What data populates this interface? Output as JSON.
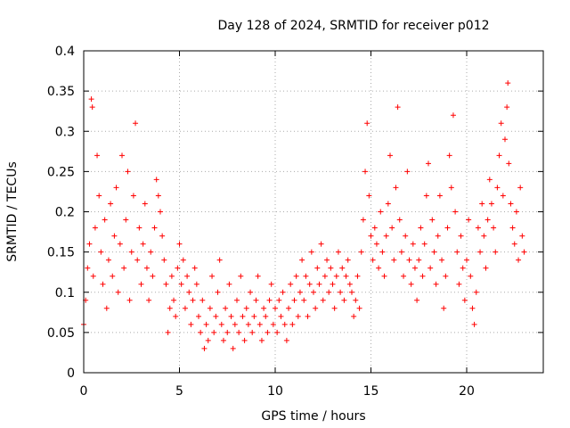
{
  "chart_data": {
    "type": "scatter",
    "title": "Day 128 of 2024, SRMTID for receiver p012",
    "xlabel": "GPS time / hours",
    "ylabel": "SRMTID / TECUs",
    "xlim": [
      0,
      24
    ],
    "ylim": [
      0,
      0.4
    ],
    "xticks": [
      0,
      5,
      10,
      15,
      20
    ],
    "xtick_labels": [
      "0",
      "5",
      "10",
      "15",
      "20"
    ],
    "yticks": [
      0,
      0.05,
      0.1,
      0.15,
      0.2,
      0.25,
      0.3,
      0.35,
      0.4
    ],
    "ytick_labels": [
      "0",
      "0.05",
      "0.1",
      "0.15",
      "0.2",
      "0.25",
      "0.3",
      "0.35",
      "0.4"
    ],
    "grid": true,
    "marker": "+",
    "color": "#ff0000",
    "series": [
      {
        "name": "SRMTID",
        "points": [
          [
            0.0,
            0.06
          ],
          [
            0.1,
            0.09
          ],
          [
            0.2,
            0.13
          ],
          [
            0.3,
            0.16
          ],
          [
            0.4,
            0.34
          ],
          [
            0.45,
            0.33
          ],
          [
            0.5,
            0.12
          ],
          [
            0.6,
            0.18
          ],
          [
            0.7,
            0.27
          ],
          [
            0.8,
            0.22
          ],
          [
            0.9,
            0.15
          ],
          [
            1.0,
            0.11
          ],
          [
            1.1,
            0.19
          ],
          [
            1.2,
            0.08
          ],
          [
            1.3,
            0.14
          ],
          [
            1.4,
            0.21
          ],
          [
            1.5,
            0.12
          ],
          [
            1.6,
            0.17
          ],
          [
            1.7,
            0.23
          ],
          [
            1.8,
            0.1
          ],
          [
            1.9,
            0.16
          ],
          [
            2.0,
            0.27
          ],
          [
            2.1,
            0.13
          ],
          [
            2.2,
            0.19
          ],
          [
            2.3,
            0.25
          ],
          [
            2.4,
            0.09
          ],
          [
            2.5,
            0.15
          ],
          [
            2.6,
            0.22
          ],
          [
            2.7,
            0.31
          ],
          [
            2.8,
            0.14
          ],
          [
            2.9,
            0.18
          ],
          [
            3.0,
            0.11
          ],
          [
            3.1,
            0.16
          ],
          [
            3.2,
            0.21
          ],
          [
            3.3,
            0.13
          ],
          [
            3.4,
            0.09
          ],
          [
            3.5,
            0.15
          ],
          [
            3.6,
            0.12
          ],
          [
            3.7,
            0.18
          ],
          [
            3.8,
            0.24
          ],
          [
            3.9,
            0.22
          ],
          [
            4.0,
            0.2
          ],
          [
            4.1,
            0.17
          ],
          [
            4.2,
            0.14
          ],
          [
            4.3,
            0.11
          ],
          [
            4.4,
            0.05
          ],
          [
            4.5,
            0.08
          ],
          [
            4.6,
            0.12
          ],
          [
            4.7,
            0.09
          ],
          [
            4.8,
            0.07
          ],
          [
            4.9,
            0.13
          ],
          [
            5.0,
            0.16
          ],
          [
            5.1,
            0.11
          ],
          [
            5.2,
            0.14
          ],
          [
            5.3,
            0.08
          ],
          [
            5.4,
            0.12
          ],
          [
            5.5,
            0.1
          ],
          [
            5.6,
            0.06
          ],
          [
            5.7,
            0.09
          ],
          [
            5.8,
            0.13
          ],
          [
            5.9,
            0.11
          ],
          [
            6.0,
            0.07
          ],
          [
            6.1,
            0.05
          ],
          [
            6.2,
            0.09
          ],
          [
            6.3,
            0.03
          ],
          [
            6.4,
            0.06
          ],
          [
            6.5,
            0.04
          ],
          [
            6.6,
            0.08
          ],
          [
            6.7,
            0.12
          ],
          [
            6.8,
            0.05
          ],
          [
            6.9,
            0.07
          ],
          [
            7.0,
            0.1
          ],
          [
            7.1,
            0.14
          ],
          [
            7.2,
            0.06
          ],
          [
            7.3,
            0.04
          ],
          [
            7.4,
            0.08
          ],
          [
            7.5,
            0.05
          ],
          [
            7.6,
            0.11
          ],
          [
            7.7,
            0.07
          ],
          [
            7.8,
            0.03
          ],
          [
            7.9,
            0.06
          ],
          [
            8.0,
            0.09
          ],
          [
            8.1,
            0.05
          ],
          [
            8.2,
            0.12
          ],
          [
            8.3,
            0.07
          ],
          [
            8.4,
            0.04
          ],
          [
            8.5,
            0.08
          ],
          [
            8.6,
            0.06
          ],
          [
            8.7,
            0.1
          ],
          [
            8.8,
            0.05
          ],
          [
            8.9,
            0.07
          ],
          [
            9.0,
            0.09
          ],
          [
            9.1,
            0.12
          ],
          [
            9.2,
            0.06
          ],
          [
            9.3,
            0.04
          ],
          [
            9.4,
            0.08
          ],
          [
            9.5,
            0.07
          ],
          [
            9.6,
            0.05
          ],
          [
            9.7,
            0.09
          ],
          [
            9.8,
            0.11
          ],
          [
            9.9,
            0.06
          ],
          [
            10.0,
            0.08
          ],
          [
            10.1,
            0.05
          ],
          [
            10.2,
            0.09
          ],
          [
            10.3,
            0.07
          ],
          [
            10.4,
            0.1
          ],
          [
            10.5,
            0.06
          ],
          [
            10.6,
            0.04
          ],
          [
            10.7,
            0.08
          ],
          [
            10.8,
            0.11
          ],
          [
            10.9,
            0.06
          ],
          [
            11.0,
            0.09
          ],
          [
            11.1,
            0.12
          ],
          [
            11.2,
            0.07
          ],
          [
            11.3,
            0.1
          ],
          [
            11.4,
            0.14
          ],
          [
            11.5,
            0.09
          ],
          [
            11.6,
            0.12
          ],
          [
            11.7,
            0.07
          ],
          [
            11.8,
            0.11
          ],
          [
            11.9,
            0.15
          ],
          [
            12.0,
            0.1
          ],
          [
            12.1,
            0.08
          ],
          [
            12.2,
            0.13
          ],
          [
            12.3,
            0.11
          ],
          [
            12.4,
            0.16
          ],
          [
            12.5,
            0.09
          ],
          [
            12.6,
            0.12
          ],
          [
            12.7,
            0.14
          ],
          [
            12.8,
            0.1
          ],
          [
            12.9,
            0.13
          ],
          [
            13.0,
            0.11
          ],
          [
            13.1,
            0.08
          ],
          [
            13.2,
            0.12
          ],
          [
            13.3,
            0.15
          ],
          [
            13.4,
            0.1
          ],
          [
            13.5,
            0.13
          ],
          [
            13.6,
            0.09
          ],
          [
            13.7,
            0.12
          ],
          [
            13.8,
            0.14
          ],
          [
            13.9,
            0.11
          ],
          [
            14.0,
            0.1
          ],
          [
            14.1,
            0.07
          ],
          [
            14.2,
            0.09
          ],
          [
            14.3,
            0.12
          ],
          [
            14.4,
            0.08
          ],
          [
            14.5,
            0.15
          ],
          [
            14.6,
            0.19
          ],
          [
            14.7,
            0.25
          ],
          [
            14.8,
            0.31
          ],
          [
            14.9,
            0.22
          ],
          [
            15.0,
            0.17
          ],
          [
            15.1,
            0.14
          ],
          [
            15.2,
            0.18
          ],
          [
            15.3,
            0.16
          ],
          [
            15.4,
            0.13
          ],
          [
            15.5,
            0.2
          ],
          [
            15.6,
            0.15
          ],
          [
            15.7,
            0.12
          ],
          [
            15.8,
            0.17
          ],
          [
            15.9,
            0.21
          ],
          [
            16.0,
            0.27
          ],
          [
            16.1,
            0.18
          ],
          [
            16.2,
            0.14
          ],
          [
            16.3,
            0.23
          ],
          [
            16.4,
            0.33
          ],
          [
            16.5,
            0.19
          ],
          [
            16.6,
            0.15
          ],
          [
            16.7,
            0.12
          ],
          [
            16.8,
            0.17
          ],
          [
            16.9,
            0.25
          ],
          [
            17.0,
            0.14
          ],
          [
            17.1,
            0.11
          ],
          [
            17.2,
            0.16
          ],
          [
            17.3,
            0.13
          ],
          [
            17.4,
            0.09
          ],
          [
            17.5,
            0.14
          ],
          [
            17.6,
            0.18
          ],
          [
            17.7,
            0.12
          ],
          [
            17.8,
            0.16
          ],
          [
            17.9,
            0.22
          ],
          [
            18.0,
            0.26
          ],
          [
            18.1,
            0.13
          ],
          [
            18.2,
            0.19
          ],
          [
            18.3,
            0.15
          ],
          [
            18.4,
            0.11
          ],
          [
            18.5,
            0.17
          ],
          [
            18.6,
            0.22
          ],
          [
            18.7,
            0.14
          ],
          [
            18.8,
            0.08
          ],
          [
            18.9,
            0.12
          ],
          [
            19.0,
            0.18
          ],
          [
            19.1,
            0.27
          ],
          [
            19.2,
            0.23
          ],
          [
            19.3,
            0.32
          ],
          [
            19.4,
            0.2
          ],
          [
            19.5,
            0.15
          ],
          [
            19.6,
            0.11
          ],
          [
            19.7,
            0.17
          ],
          [
            19.8,
            0.13
          ],
          [
            19.9,
            0.09
          ],
          [
            20.0,
            0.14
          ],
          [
            20.1,
            0.19
          ],
          [
            20.2,
            0.12
          ],
          [
            20.3,
            0.08
          ],
          [
            20.4,
            0.06
          ],
          [
            20.5,
            0.1
          ],
          [
            20.6,
            0.18
          ],
          [
            20.7,
            0.15
          ],
          [
            20.8,
            0.21
          ],
          [
            20.9,
            0.17
          ],
          [
            21.0,
            0.13
          ],
          [
            21.1,
            0.19
          ],
          [
            21.2,
            0.24
          ],
          [
            21.3,
            0.21
          ],
          [
            21.4,
            0.18
          ],
          [
            21.5,
            0.15
          ],
          [
            21.6,
            0.23
          ],
          [
            21.7,
            0.27
          ],
          [
            21.8,
            0.31
          ],
          [
            21.9,
            0.22
          ],
          [
            22.0,
            0.29
          ],
          [
            22.1,
            0.33
          ],
          [
            22.15,
            0.36
          ],
          [
            22.2,
            0.26
          ],
          [
            22.3,
            0.21
          ],
          [
            22.4,
            0.18
          ],
          [
            22.5,
            0.16
          ],
          [
            22.6,
            0.2
          ],
          [
            22.7,
            0.14
          ],
          [
            22.8,
            0.23
          ],
          [
            22.9,
            0.17
          ],
          [
            23.0,
            0.15
          ]
        ]
      }
    ]
  }
}
